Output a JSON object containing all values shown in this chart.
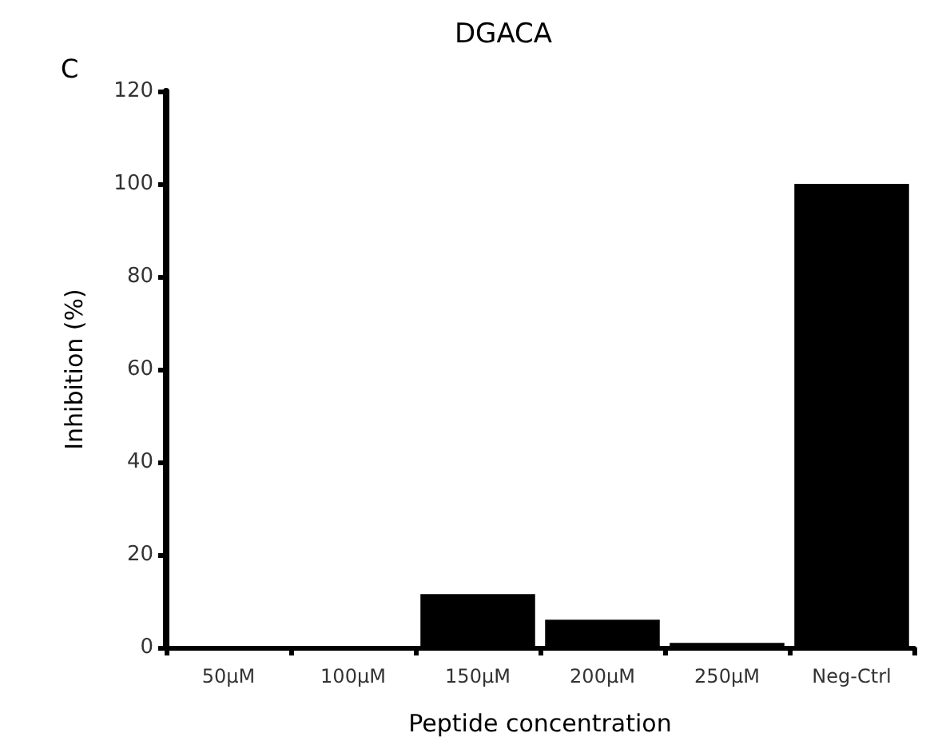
{
  "chart_data": {
    "type": "bar",
    "title": "DGACA",
    "xlabel": "Peptide concentration",
    "ylabel": "Inhibition (%)",
    "annotations": [
      "C"
    ],
    "categories": [
      "50µM",
      "100µM",
      "150µM",
      "200µM",
      "250µM",
      "Neg-Ctrl"
    ],
    "values": [
      0,
      0,
      11.5,
      6,
      1,
      100
    ],
    "color": "#000000",
    "ylim": [
      0,
      120
    ],
    "yticks": [
      0,
      20,
      40,
      60,
      80,
      100,
      120
    ],
    "grid": false
  }
}
